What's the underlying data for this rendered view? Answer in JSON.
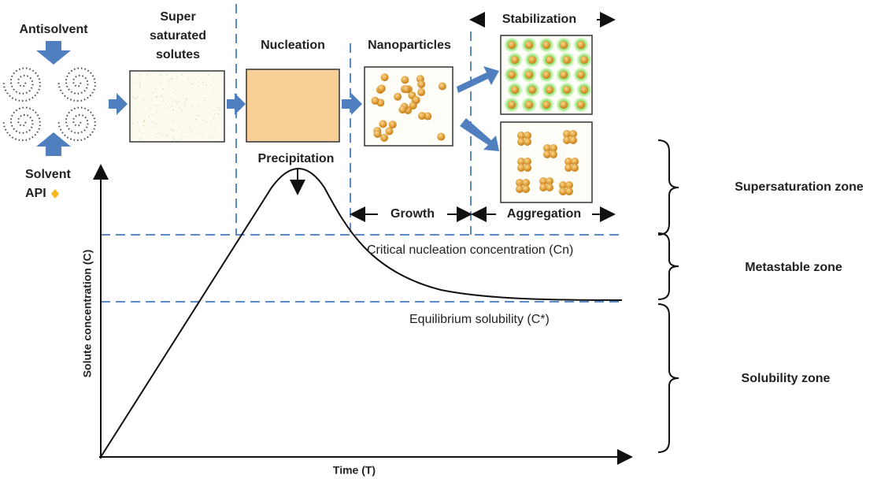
{
  "process": {
    "antisolvent": "Antisolvent",
    "supersaturated": [
      "Super",
      "saturated",
      "solutes"
    ],
    "nucleation": "Nucleation",
    "nanoparticles": "Nanoparticles",
    "stabilization": "Stabilization",
    "solvent": "Solvent",
    "api": "API",
    "precipitation": "Precipitation",
    "growth": "Growth",
    "aggregation": "Aggregation"
  },
  "graph": {
    "critical": "Critical nucleation concentration (Cn)",
    "equilibrium": "Equilibrium solubility (C*)",
    "y_axis": "Solute concentration (C)",
    "x_axis": "Time (T)"
  },
  "zones": [
    "Supersaturation zone",
    "Metastable zone",
    "Solubility zone"
  ]
}
